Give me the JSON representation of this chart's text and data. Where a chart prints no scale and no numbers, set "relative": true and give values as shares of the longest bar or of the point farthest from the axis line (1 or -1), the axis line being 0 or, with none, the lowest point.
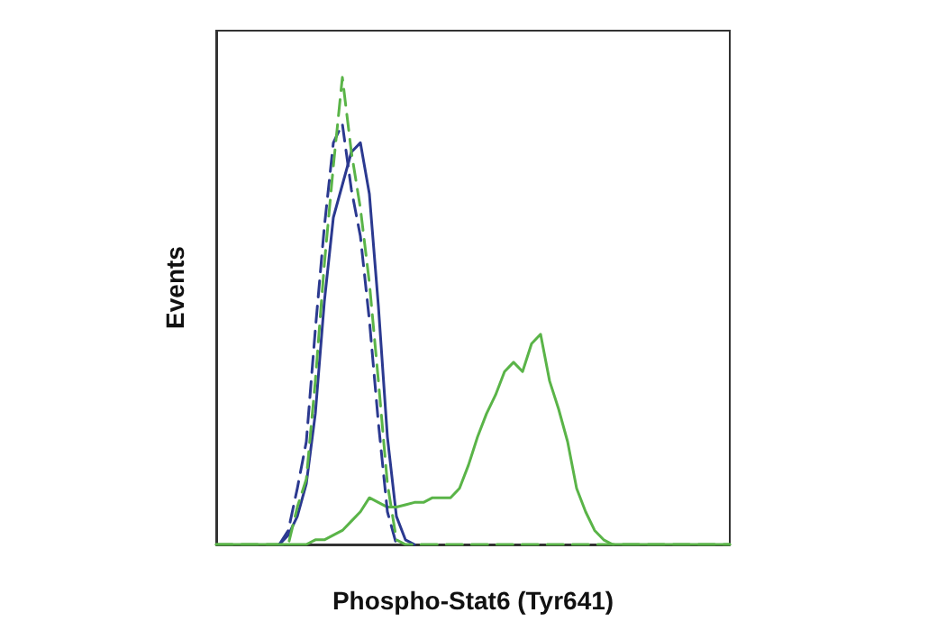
{
  "chart_data": {
    "type": "line",
    "relative": true,
    "xlabel": "Phospho-Stat6 (Tyr641)",
    "ylabel": "Events",
    "grid": false,
    "marker": "none",
    "categories": [
      null,
      null,
      null,
      null,
      null,
      null,
      null,
      null,
      null,
      null,
      null,
      null,
      null,
      null,
      null,
      null,
      null,
      null,
      null,
      null,
      null,
      null,
      null,
      null,
      null,
      null,
      null,
      null,
      null,
      null,
      null,
      null,
      null,
      null,
      null,
      null,
      null,
      null,
      null,
      null,
      null,
      null,
      null,
      null,
      null,
      null,
      null,
      null,
      null,
      null,
      null,
      null,
      null,
      null,
      null,
      null,
      null,
      null
    ],
    "series": [
      {
        "color": "#2b3990",
        "line_style": "solid",
        "values": [
          null,
          null,
          null,
          null,
          null,
          null,
          null,
          0,
          0.02,
          0.06,
          0.13,
          0.28,
          0.52,
          0.7,
          0.77,
          0.84,
          0.86,
          0.75,
          0.51,
          0.23,
          0.06,
          0.01,
          0,
          null,
          null,
          null,
          null,
          null,
          null,
          null,
          null,
          null,
          null,
          null,
          null,
          null,
          null,
          null,
          null,
          null,
          null,
          null,
          null,
          null,
          null,
          null,
          null,
          null,
          null,
          null,
          null,
          null,
          null,
          null,
          null,
          null,
          null,
          null
        ]
      },
      {
        "color": "#5ab448",
        "line_style": "solid",
        "values": [
          0,
          0,
          0,
          0,
          0,
          0,
          0,
          0,
          0,
          0,
          0,
          0.01,
          0.01,
          0.02,
          0.03,
          0.05,
          0.07,
          0.1,
          0.09,
          0.08,
          0.08,
          0.085,
          0.09,
          0.09,
          0.1,
          0.1,
          0.1,
          0.12,
          0.17,
          0.23,
          0.28,
          0.32,
          0.37,
          0.39,
          0.37,
          0.43,
          0.45,
          0.35,
          0.29,
          0.22,
          0.12,
          0.07,
          0.03,
          0.01,
          0,
          0,
          0,
          0,
          0,
          0,
          0,
          0,
          0,
          0,
          0,
          0,
          0,
          0
        ]
      },
      {
        "color": "#2b3990",
        "line_style": "dashed",
        "values": [
          null,
          null,
          null,
          null,
          null,
          null,
          null,
          0,
          0.03,
          0.12,
          0.22,
          0.46,
          0.68,
          0.86,
          0.9,
          0.76,
          0.66,
          0.48,
          0.26,
          0.07,
          0,
          null,
          null,
          null,
          null,
          null,
          null,
          null,
          null,
          null,
          null,
          null,
          null,
          null,
          null,
          null,
          null,
          null,
          null,
          null,
          null,
          null,
          null,
          null,
          null,
          null,
          null,
          null,
          null,
          null,
          null,
          null,
          null,
          null,
          null,
          null,
          null,
          null
        ]
      },
      {
        "color": "#5ab448",
        "line_style": "dashed",
        "values": [
          0,
          0,
          0,
          0,
          0,
          0,
          0,
          0,
          0,
          0.08,
          0.14,
          0.35,
          0.6,
          0.81,
          1.0,
          0.84,
          0.72,
          0.56,
          0.35,
          0.13,
          0.01,
          0,
          0,
          0,
          0,
          0,
          0,
          0,
          0,
          0,
          0,
          0,
          0,
          0,
          0,
          0,
          0,
          0,
          0,
          0,
          0,
          0,
          0,
          0,
          0,
          0,
          0,
          0,
          0,
          0,
          0,
          0,
          0,
          0,
          0,
          0,
          0,
          0
        ]
      }
    ]
  }
}
